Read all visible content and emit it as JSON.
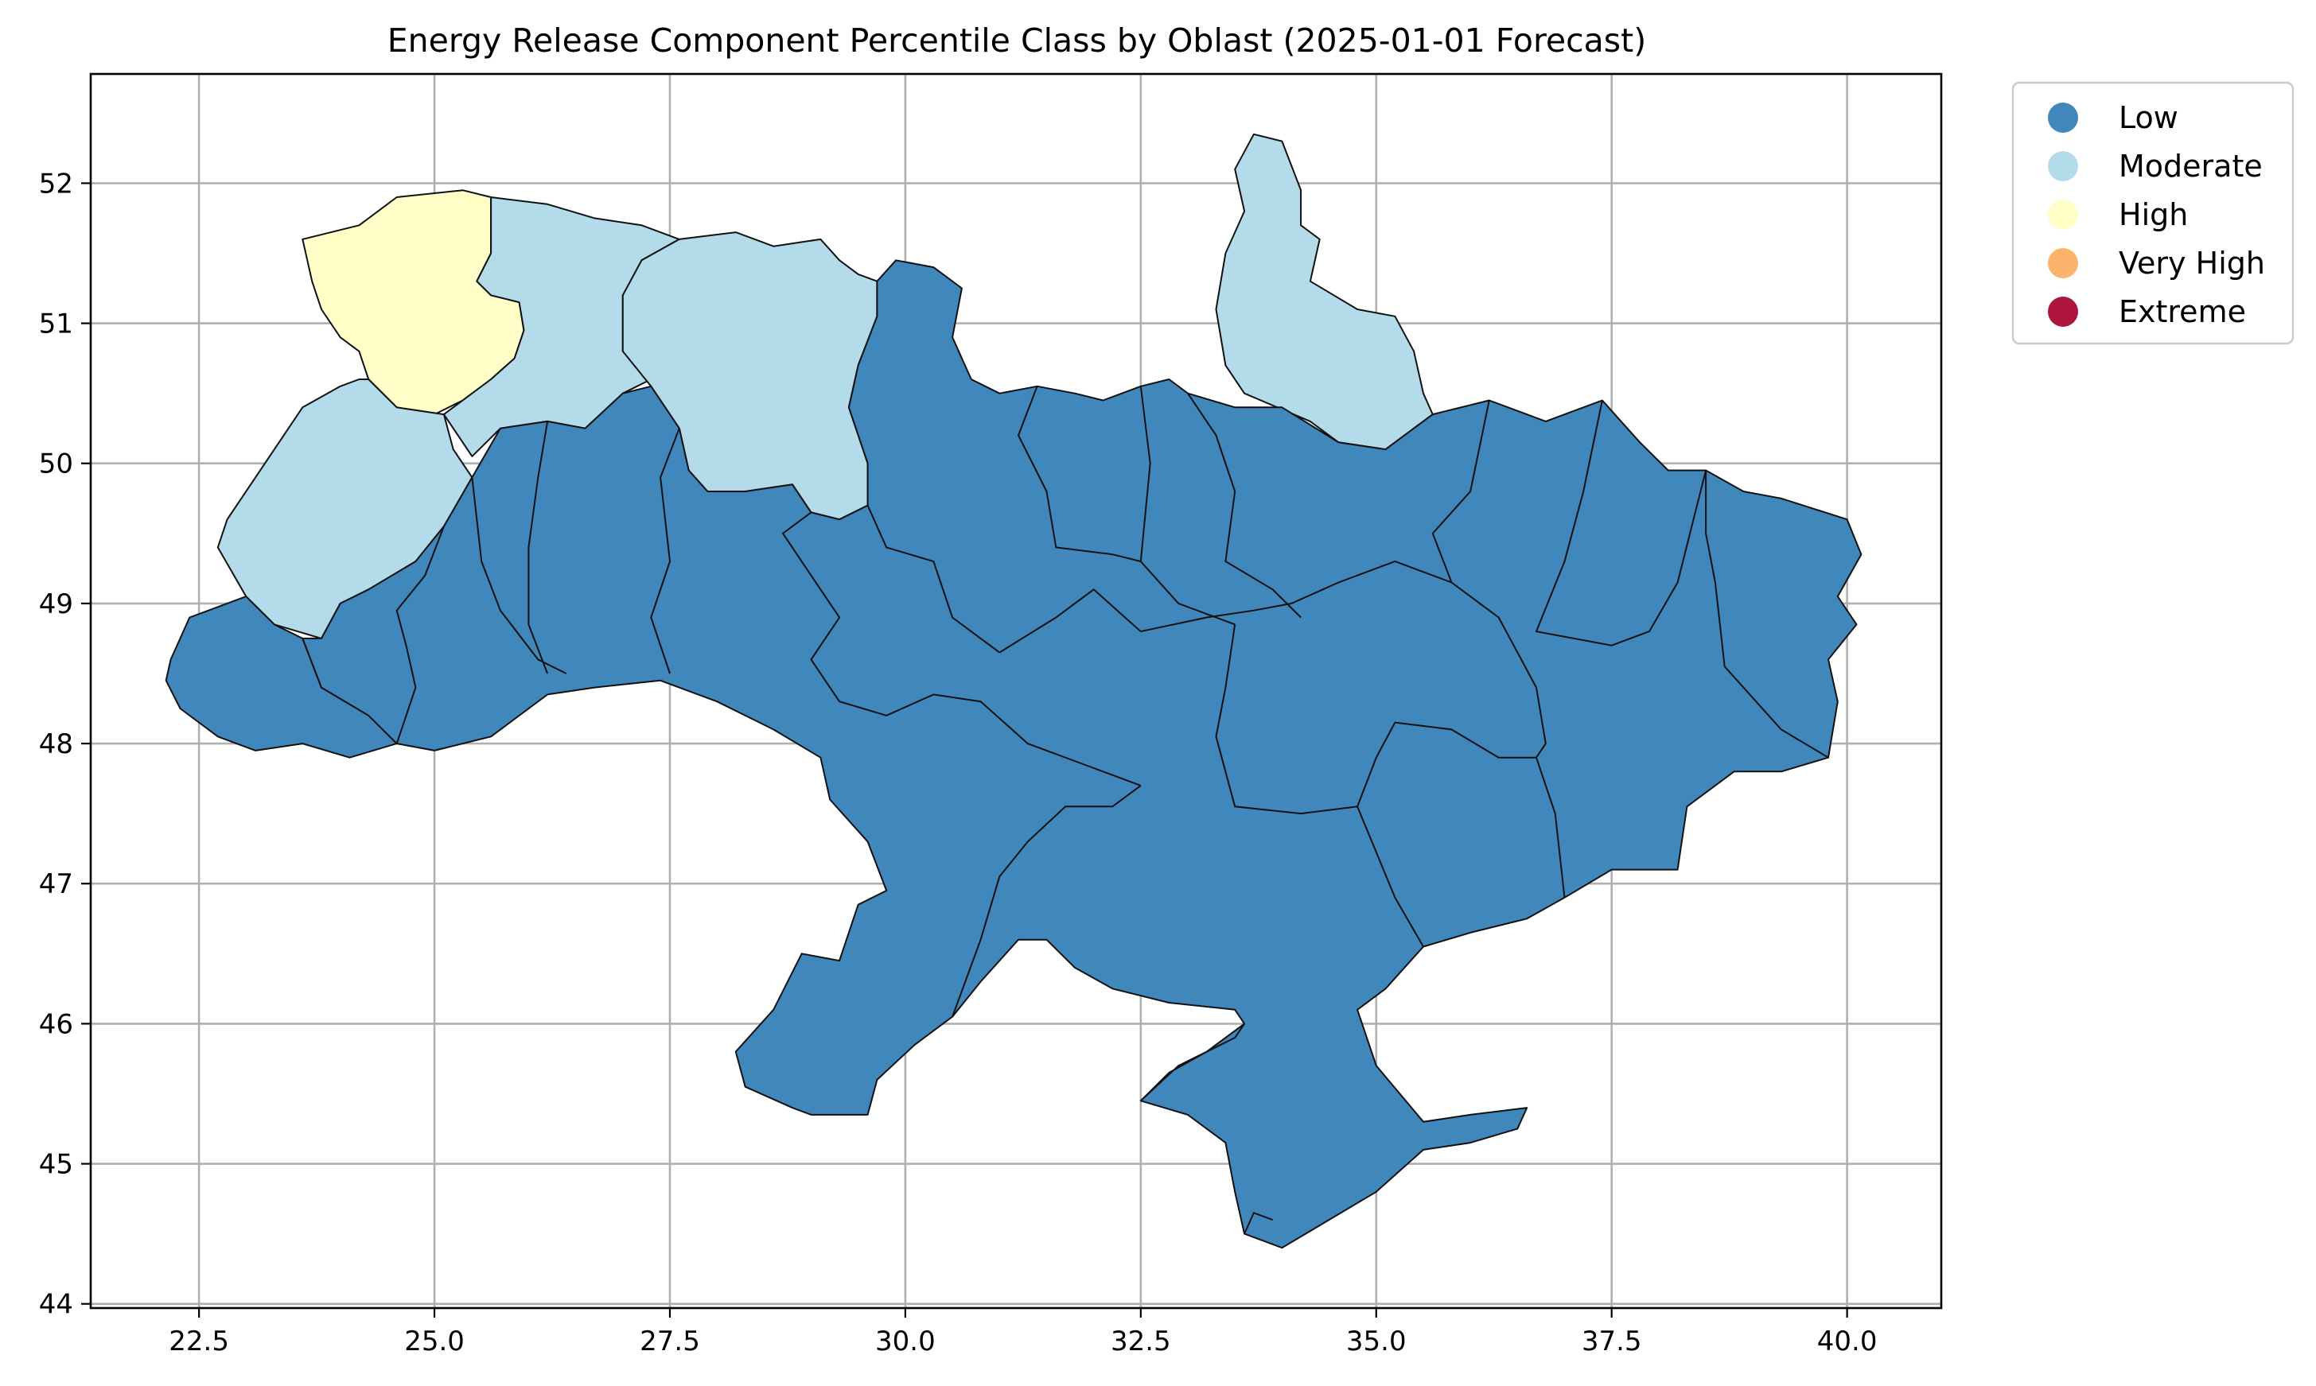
{
  "chart_data": {
    "type": "choropleth",
    "title": "Energy Release Component Percentile Class by Oblast (2025-01-01 Forecast)",
    "xlabel": "",
    "ylabel": "",
    "xlim": [
      21.35,
      41.0
    ],
    "ylim": [
      43.97,
      52.78
    ],
    "x_ticks": [
      "22.5",
      "25.0",
      "27.5",
      "30.0",
      "32.5",
      "35.0",
      "37.5",
      "40.0"
    ],
    "x_tick_values": [
      22.5,
      25.0,
      27.5,
      30.0,
      32.5,
      35.0,
      37.5,
      40.0
    ],
    "y_ticks": [
      "44",
      "45",
      "46",
      "47",
      "48",
      "49",
      "50",
      "51",
      "52"
    ],
    "y_tick_values": [
      44,
      45,
      46,
      47,
      48,
      49,
      50,
      51,
      52
    ],
    "grid": true,
    "legend_position": "outside-top-right",
    "classes": [
      {
        "label": "Low",
        "color": "#4087bc"
      },
      {
        "label": "Moderate",
        "color": "#b3dbe9"
      },
      {
        "label": "High",
        "color": "#ffffc7"
      },
      {
        "label": "Very High",
        "color": "#fbb46c"
      },
      {
        "label": "Extreme",
        "color": "#ae1540"
      }
    ],
    "regions": [
      {
        "class": "High",
        "polygon": [
          [
            23.6,
            51.6
          ],
          [
            24.2,
            51.7
          ],
          [
            24.6,
            51.9
          ],
          [
            25.3,
            51.95
          ],
          [
            25.6,
            51.9
          ],
          [
            25.6,
            51.5
          ],
          [
            25.45,
            51.3
          ],
          [
            25.6,
            51.2
          ],
          [
            25.9,
            51.15
          ],
          [
            25.95,
            50.95
          ],
          [
            25.85,
            50.75
          ],
          [
            25.6,
            50.6
          ],
          [
            25.3,
            50.45
          ],
          [
            25.0,
            50.35
          ],
          [
            24.6,
            50.4
          ],
          [
            24.3,
            50.6
          ],
          [
            24.2,
            50.8
          ],
          [
            24.0,
            50.9
          ],
          [
            23.8,
            51.1
          ],
          [
            23.7,
            51.3
          ],
          [
            23.6,
            51.6
          ]
        ]
      },
      {
        "class": "Moderate",
        "polygon": [
          [
            24.2,
            50.6
          ],
          [
            24.0,
            50.55
          ],
          [
            23.6,
            50.4
          ],
          [
            23.2,
            50.0
          ],
          [
            22.8,
            49.6
          ],
          [
            22.7,
            49.4
          ],
          [
            23.0,
            49.05
          ],
          [
            23.3,
            48.85
          ],
          [
            23.8,
            48.75
          ],
          [
            24.0,
            49.0
          ],
          [
            24.3,
            49.1
          ],
          [
            24.8,
            49.3
          ],
          [
            25.1,
            49.55
          ],
          [
            25.4,
            49.9
          ],
          [
            25.2,
            50.1
          ],
          [
            25.1,
            50.35
          ],
          [
            24.6,
            50.4
          ],
          [
            24.3,
            50.6
          ],
          [
            24.2,
            50.6
          ]
        ]
      },
      {
        "class": "Moderate",
        "polygon": [
          [
            25.6,
            51.9
          ],
          [
            26.2,
            51.85
          ],
          [
            26.7,
            51.75
          ],
          [
            27.2,
            51.7
          ],
          [
            27.6,
            51.6
          ],
          [
            27.2,
            51.45
          ],
          [
            27.0,
            51.2
          ],
          [
            27.0,
            50.8
          ],
          [
            27.3,
            50.6
          ],
          [
            27.0,
            50.5
          ],
          [
            26.6,
            50.25
          ],
          [
            26.2,
            50.3
          ],
          [
            25.7,
            50.25
          ],
          [
            25.4,
            50.05
          ],
          [
            25.1,
            50.35
          ],
          [
            25.3,
            50.45
          ],
          [
            25.6,
            50.6
          ],
          [
            25.85,
            50.75
          ],
          [
            25.95,
            50.95
          ],
          [
            25.9,
            51.15
          ],
          [
            25.6,
            51.2
          ],
          [
            25.45,
            51.3
          ],
          [
            25.6,
            51.5
          ],
          [
            25.6,
            51.9
          ]
        ]
      },
      {
        "class": "Moderate",
        "polygon": [
          [
            27.6,
            51.6
          ],
          [
            28.2,
            51.65
          ],
          [
            28.6,
            51.55
          ],
          [
            29.1,
            51.6
          ],
          [
            29.3,
            51.45
          ],
          [
            29.5,
            51.35
          ],
          [
            29.7,
            51.3
          ],
          [
            29.7,
            51.05
          ],
          [
            29.5,
            50.7
          ],
          [
            29.4,
            50.4
          ],
          [
            29.6,
            50.0
          ],
          [
            29.6,
            49.7
          ],
          [
            29.3,
            49.6
          ],
          [
            29.0,
            49.65
          ],
          [
            28.8,
            49.85
          ],
          [
            28.3,
            49.8
          ],
          [
            27.9,
            49.8
          ],
          [
            27.7,
            49.95
          ],
          [
            27.6,
            50.25
          ],
          [
            27.3,
            50.55
          ],
          [
            27.0,
            50.8
          ],
          [
            27.0,
            51.2
          ],
          [
            27.2,
            51.45
          ],
          [
            27.6,
            51.6
          ]
        ]
      },
      {
        "class": "Moderate",
        "polygon": [
          [
            33.7,
            52.35
          ],
          [
            34.0,
            52.3
          ],
          [
            34.2,
            51.95
          ],
          [
            34.2,
            51.7
          ],
          [
            34.4,
            51.6
          ],
          [
            34.3,
            51.3
          ],
          [
            34.8,
            51.1
          ],
          [
            35.2,
            51.05
          ],
          [
            35.4,
            50.8
          ],
          [
            35.5,
            50.5
          ],
          [
            35.6,
            50.35
          ],
          [
            35.1,
            50.1
          ],
          [
            34.6,
            50.15
          ],
          [
            34.3,
            50.3
          ],
          [
            33.6,
            50.5
          ],
          [
            33.4,
            50.7
          ],
          [
            33.3,
            51.1
          ],
          [
            33.4,
            51.5
          ],
          [
            33.6,
            51.8
          ],
          [
            33.5,
            52.1
          ],
          [
            33.7,
            52.35
          ]
        ]
      },
      {
        "class": "Low",
        "polygon": [
          [
            22.2,
            48.6
          ],
          [
            22.4,
            48.9
          ],
          [
            23.0,
            49.05
          ],
          [
            23.3,
            48.85
          ],
          [
            23.6,
            48.75
          ],
          [
            23.8,
            48.4
          ],
          [
            24.3,
            48.2
          ],
          [
            24.6,
            48.0
          ],
          [
            24.1,
            47.9
          ],
          [
            23.6,
            48.0
          ],
          [
            23.1,
            47.95
          ],
          [
            22.7,
            48.05
          ],
          [
            22.3,
            48.25
          ],
          [
            22.15,
            48.45
          ],
          [
            22.2,
            48.6
          ]
        ]
      },
      {
        "class": "Low",
        "polygon": [
          [
            23.8,
            48.75
          ],
          [
            24.0,
            49.0
          ],
          [
            24.3,
            49.1
          ],
          [
            24.8,
            49.3
          ],
          [
            25.1,
            49.55
          ],
          [
            25.4,
            49.9
          ],
          [
            25.7,
            50.25
          ],
          [
            26.2,
            50.3
          ],
          [
            26.6,
            50.25
          ],
          [
            27.0,
            50.5
          ],
          [
            27.3,
            50.55
          ],
          [
            27.6,
            50.25
          ],
          [
            27.7,
            49.95
          ],
          [
            27.9,
            49.8
          ],
          [
            28.3,
            49.8
          ],
          [
            28.8,
            49.85
          ],
          [
            29.0,
            49.65
          ],
          [
            29.3,
            49.6
          ],
          [
            29.6,
            49.7
          ],
          [
            29.6,
            50.0
          ],
          [
            29.4,
            50.4
          ],
          [
            29.5,
            50.7
          ],
          [
            29.7,
            51.05
          ],
          [
            29.7,
            51.3
          ],
          [
            29.9,
            51.45
          ],
          [
            30.3,
            51.4
          ],
          [
            30.6,
            51.25
          ],
          [
            30.5,
            50.9
          ],
          [
            30.7,
            50.6
          ],
          [
            31.0,
            50.5
          ],
          [
            31.4,
            50.55
          ],
          [
            31.8,
            50.5
          ],
          [
            32.1,
            50.45
          ],
          [
            32.5,
            50.55
          ],
          [
            32.8,
            50.6
          ],
          [
            33.0,
            50.5
          ],
          [
            33.5,
            50.4
          ],
          [
            34.0,
            50.4
          ],
          [
            34.6,
            50.15
          ],
          [
            35.1,
            50.1
          ],
          [
            35.6,
            50.35
          ],
          [
            36.2,
            50.45
          ],
          [
            36.8,
            50.3
          ],
          [
            37.4,
            50.45
          ],
          [
            37.8,
            50.15
          ],
          [
            38.1,
            49.95
          ],
          [
            38.5,
            49.95
          ],
          [
            38.9,
            49.8
          ],
          [
            39.3,
            49.75
          ],
          [
            40.0,
            49.6
          ],
          [
            40.15,
            49.35
          ],
          [
            39.9,
            49.05
          ],
          [
            40.1,
            48.85
          ],
          [
            39.8,
            48.6
          ],
          [
            39.9,
            48.3
          ],
          [
            39.8,
            47.9
          ],
          [
            39.3,
            47.8
          ],
          [
            38.8,
            47.8
          ],
          [
            38.3,
            47.55
          ],
          [
            38.2,
            47.1
          ],
          [
            37.5,
            47.1
          ],
          [
            37.0,
            46.9
          ],
          [
            36.6,
            46.75
          ],
          [
            36.0,
            46.65
          ],
          [
            35.5,
            46.55
          ],
          [
            35.1,
            46.25
          ],
          [
            34.8,
            46.1
          ],
          [
            35.0,
            45.7
          ],
          [
            35.5,
            45.3
          ],
          [
            36.0,
            45.35
          ],
          [
            36.6,
            45.4
          ],
          [
            36.5,
            45.25
          ],
          [
            36.0,
            45.15
          ],
          [
            35.5,
            45.1
          ],
          [
            35.0,
            44.8
          ],
          [
            34.5,
            44.6
          ],
          [
            34.0,
            44.4
          ],
          [
            33.6,
            44.5
          ],
          [
            33.5,
            44.8
          ],
          [
            33.4,
            45.15
          ],
          [
            33.0,
            45.35
          ],
          [
            32.5,
            45.45
          ],
          [
            32.8,
            45.65
          ],
          [
            33.2,
            45.8
          ],
          [
            33.6,
            46.0
          ],
          [
            33.5,
            46.1
          ],
          [
            32.8,
            46.15
          ],
          [
            32.2,
            46.25
          ],
          [
            31.8,
            46.4
          ],
          [
            31.5,
            46.6
          ],
          [
            31.2,
            46.6
          ],
          [
            30.8,
            46.3
          ],
          [
            30.5,
            46.05
          ],
          [
            30.1,
            45.85
          ],
          [
            29.7,
            45.6
          ],
          [
            29.6,
            45.35
          ],
          [
            29.0,
            45.35
          ],
          [
            28.8,
            45.4
          ],
          [
            28.3,
            45.55
          ],
          [
            28.2,
            45.8
          ],
          [
            28.6,
            46.1
          ],
          [
            28.9,
            46.5
          ],
          [
            29.3,
            46.45
          ],
          [
            29.5,
            46.85
          ],
          [
            29.8,
            46.95
          ],
          [
            29.6,
            47.3
          ],
          [
            29.2,
            47.6
          ],
          [
            29.1,
            47.9
          ],
          [
            28.6,
            48.1
          ],
          [
            28.0,
            48.3
          ],
          [
            27.4,
            48.45
          ],
          [
            26.7,
            48.4
          ],
          [
            26.2,
            48.35
          ],
          [
            25.6,
            48.05
          ],
          [
            25.0,
            47.95
          ],
          [
            24.6,
            48.0
          ],
          [
            24.3,
            48.2
          ],
          [
            23.8,
            48.4
          ],
          [
            23.6,
            48.75
          ],
          [
            23.8,
            48.75
          ]
        ]
      }
    ]
  }
}
